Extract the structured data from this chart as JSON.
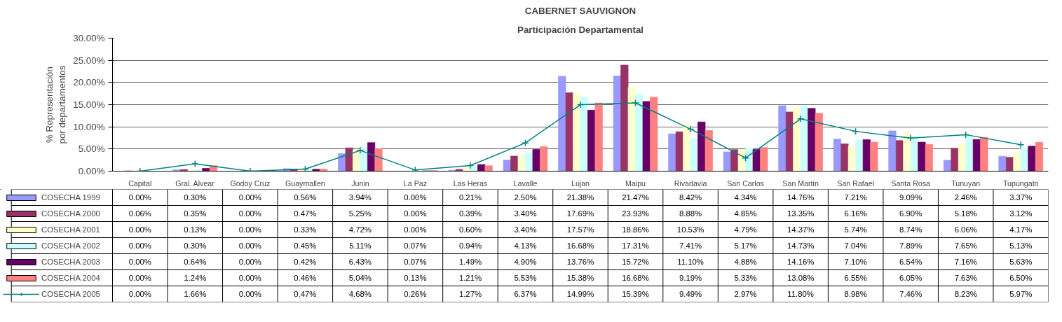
{
  "chart_data": {
    "type": "bar",
    "title": "CABERNET SAUVIGNON",
    "subtitle": "Participación Departamental",
    "ylabel": "% Representación\npor departamentos",
    "categories": [
      "Capital",
      "Gral. Alvear",
      "Godoy Cruz",
      "Guaymallen",
      "Junin",
      "La Paz",
      "Las Heras",
      "Lavalle",
      "Lujan",
      "Maipu",
      "Rivadavia",
      "San Carlos",
      "San Martin",
      "San Rafael",
      "Santa Rosa",
      "Tunuyan",
      "Tupungato"
    ],
    "series": [
      {
        "name": "COSECHA 1999",
        "color": "#9999ff",
        "values": [
          0.0,
          0.3,
          0.0,
          0.56,
          3.94,
          0.0,
          0.21,
          2.5,
          21.38,
          21.47,
          8.42,
          4.34,
          14.76,
          7.21,
          9.09,
          2.46,
          3.37
        ],
        "value_labels": [
          "0.00%",
          "0.30%",
          "0.00%",
          "0.56%",
          "3.94%",
          "0.00%",
          "0.21%",
          "2.50%",
          "21.38%",
          "21.47%",
          "8.42%",
          "4.34%",
          "14.76%",
          "7.21%",
          "9.09%",
          "2.46%",
          "3.37%"
        ]
      },
      {
        "name": "COSECHA 2000",
        "color": "#993366",
        "values": [
          0.06,
          0.35,
          0.0,
          0.47,
          5.25,
          0.0,
          0.39,
          3.4,
          17.69,
          23.93,
          8.88,
          4.85,
          13.35,
          6.16,
          6.9,
          5.18,
          3.12
        ],
        "value_labels": [
          "0.06%",
          "0.35%",
          "0.00%",
          "0.47%",
          "5.25%",
          "0.00%",
          "0.39%",
          "3.40%",
          "17.69%",
          "23.93%",
          "8.88%",
          "4.85%",
          "13.35%",
          "6.16%",
          "6.90%",
          "5.18%",
          "3.12%"
        ]
      },
      {
        "name": "COSECHA 2001",
        "color": "#ffffcc",
        "values": [
          0.0,
          0.13,
          0.0,
          0.33,
          4.72,
          0.0,
          0.6,
          3.4,
          17.57,
          18.86,
          10.53,
          4.79,
          14.37,
          5.74,
          8.74,
          6.06,
          4.17
        ],
        "value_labels": [
          "0.00%",
          "0.13%",
          "0.00%",
          "0.33%",
          "4.72%",
          "0.00%",
          "0.60%",
          "3.40%",
          "17.57%",
          "18.86%",
          "10.53%",
          "4.79%",
          "14.37%",
          "5.74%",
          "8.74%",
          "6.06%",
          "4.17%"
        ]
      },
      {
        "name": "COSECHA 2002",
        "color": "#ccffff",
        "values": [
          0.0,
          0.3,
          0.0,
          0.45,
          5.11,
          0.07,
          0.94,
          4.13,
          16.68,
          17.31,
          7.41,
          5.17,
          14.73,
          7.04,
          7.89,
          7.65,
          5.13
        ],
        "value_labels": [
          "0.00%",
          "0.30%",
          "0.00%",
          "0.45%",
          "5.11%",
          "0.07%",
          "0.94%",
          "4.13%",
          "16.68%",
          "17.31%",
          "7.41%",
          "5.17%",
          "14.73%",
          "7.04%",
          "7.89%",
          "7.65%",
          "5.13%"
        ]
      },
      {
        "name": "COSECHA 2003",
        "color": "#660066",
        "values": [
          0.0,
          0.64,
          0.0,
          0.42,
          6.43,
          0.07,
          1.49,
          4.9,
          13.76,
          15.72,
          11.1,
          4.88,
          14.16,
          7.1,
          6.54,
          7.16,
          5.63
        ],
        "value_labels": [
          "0.00%",
          "0.64%",
          "0.00%",
          "0.42%",
          "6.43%",
          "0.07%",
          "1.49%",
          "4.90%",
          "13.76%",
          "15.72%",
          "11.10%",
          "4.88%",
          "14.16%",
          "7.10%",
          "6.54%",
          "7.16%",
          "5.63%"
        ]
      },
      {
        "name": "COSECHA 2004",
        "color": "#ff8080",
        "values": [
          0.0,
          1.24,
          0.0,
          0.46,
          5.04,
          0.13,
          1.21,
          5.53,
          15.38,
          16.68,
          9.19,
          5.33,
          13.08,
          6.55,
          6.05,
          7.63,
          6.5
        ],
        "value_labels": [
          "0.00%",
          "1.24%",
          "0.00%",
          "0.46%",
          "5.04%",
          "0.13%",
          "1.21%",
          "5.53%",
          "15.38%",
          "16.68%",
          "9.19%",
          "5.33%",
          "13.08%",
          "6.55%",
          "6.05%",
          "7.63%",
          "6.50%"
        ]
      },
      {
        "name": "COSECHA 2005",
        "type": "line",
        "marker": "cross",
        "color": "#008080",
        "values": [
          0.0,
          1.66,
          0.0,
          0.47,
          4.68,
          0.26,
          1.27,
          6.37,
          14.99,
          15.39,
          9.49,
          2.97,
          11.8,
          8.98,
          7.46,
          8.23,
          5.97
        ],
        "value_labels": [
          "0.00%",
          "1.66%",
          "0.00%",
          "0.47%",
          "4.68%",
          "0.26%",
          "1.27%",
          "6.37%",
          "14.99%",
          "15.39%",
          "9.49%",
          "2.97%",
          "11.80%",
          "8.98%",
          "7.46%",
          "8.23%",
          "5.97%"
        ]
      }
    ],
    "ylim": [
      0,
      30
    ],
    "yticks": [
      {
        "value": 0,
        "label": "0.00%"
      },
      {
        "value": 5,
        "label": "5.00%"
      },
      {
        "value": 10,
        "label": "10.00%"
      },
      {
        "value": 15,
        "label": "15.00%"
      },
      {
        "value": 20,
        "label": "20.00%"
      },
      {
        "value": 25,
        "label": "25.00%"
      },
      {
        "value": 30,
        "label": "30.00%"
      }
    ],
    "grid": "y",
    "legend": "bottom left"
  }
}
